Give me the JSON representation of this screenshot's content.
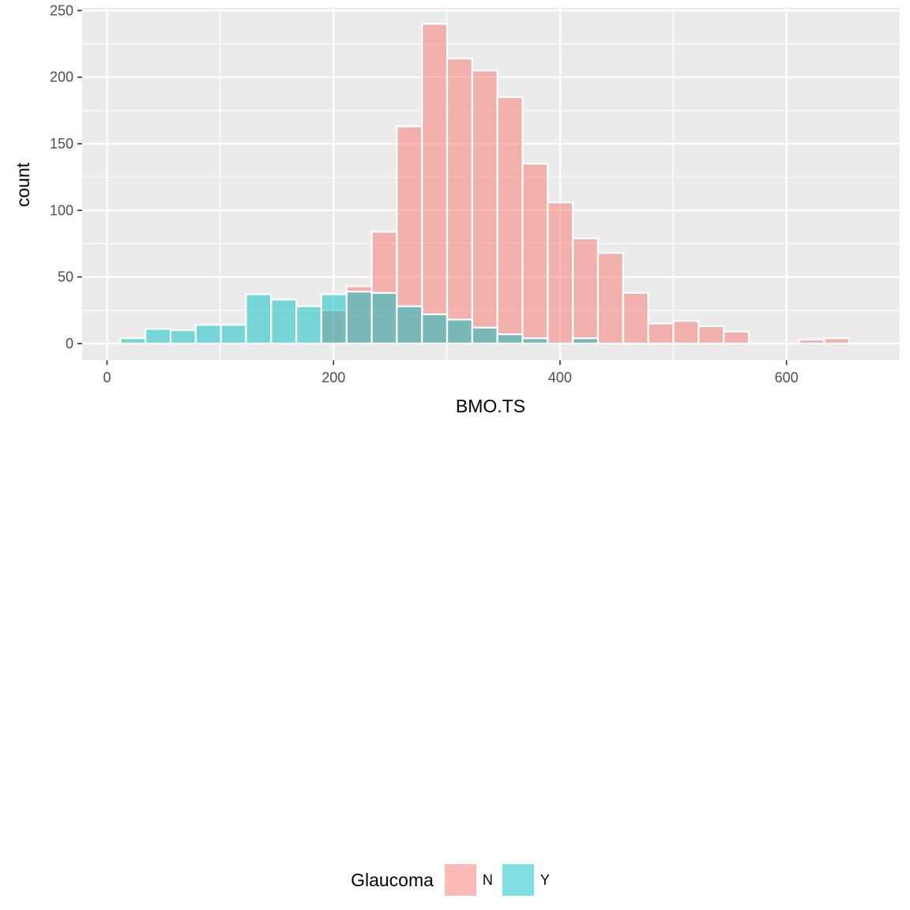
{
  "chart_data": {
    "type": "bar",
    "subtype": "overlapping-histogram",
    "xlabel": "BMO.TS",
    "ylabel": "count",
    "xlim": [
      -22,
      700
    ],
    "ylim": [
      -12.5,
      252
    ],
    "x_ticks": [
      0,
      200,
      400,
      600
    ],
    "y_ticks": [
      0,
      50,
      100,
      150,
      200,
      250
    ],
    "grid": true,
    "legend_position": "bottom",
    "legend_title": "Glaucoma",
    "bin_width": 22.2,
    "series": [
      {
        "name": "N",
        "color": "#F8766D",
        "bins": [
          {
            "x": 200.4,
            "count": 25
          },
          {
            "x": 222.6,
            "count": 43
          },
          {
            "x": 244.8,
            "count": 84
          },
          {
            "x": 267.0,
            "count": 163
          },
          {
            "x": 289.2,
            "count": 240
          },
          {
            "x": 311.4,
            "count": 214
          },
          {
            "x": 333.6,
            "count": 205
          },
          {
            "x": 355.8,
            "count": 185
          },
          {
            "x": 378.0,
            "count": 135
          },
          {
            "x": 400.2,
            "count": 106
          },
          {
            "x": 422.4,
            "count": 79
          },
          {
            "x": 444.6,
            "count": 68
          },
          {
            "x": 466.8,
            "count": 38
          },
          {
            "x": 489.0,
            "count": 15
          },
          {
            "x": 511.2,
            "count": 17
          },
          {
            "x": 533.4,
            "count": 13
          },
          {
            "x": 555.6,
            "count": 9
          },
          {
            "x": 622.2,
            "count": 3
          },
          {
            "x": 644.4,
            "count": 4
          }
        ]
      },
      {
        "name": "Y",
        "color": "#00BFC4",
        "bins": [
          {
            "x": 22.8,
            "count": 4
          },
          {
            "x": 45.0,
            "count": 11
          },
          {
            "x": 67.2,
            "count": 10
          },
          {
            "x": 89.4,
            "count": 14
          },
          {
            "x": 111.6,
            "count": 14
          },
          {
            "x": 133.8,
            "count": 37
          },
          {
            "x": 156.0,
            "count": 33
          },
          {
            "x": 178.2,
            "count": 28
          },
          {
            "x": 200.4,
            "count": 37
          },
          {
            "x": 222.6,
            "count": 39
          },
          {
            "x": 244.8,
            "count": 38
          },
          {
            "x": 267.0,
            "count": 28
          },
          {
            "x": 289.2,
            "count": 22
          },
          {
            "x": 311.4,
            "count": 18
          },
          {
            "x": 333.6,
            "count": 12
          },
          {
            "x": 355.8,
            "count": 7
          },
          {
            "x": 378.0,
            "count": 4
          },
          {
            "x": 422.4,
            "count": 4
          }
        ]
      }
    ]
  }
}
